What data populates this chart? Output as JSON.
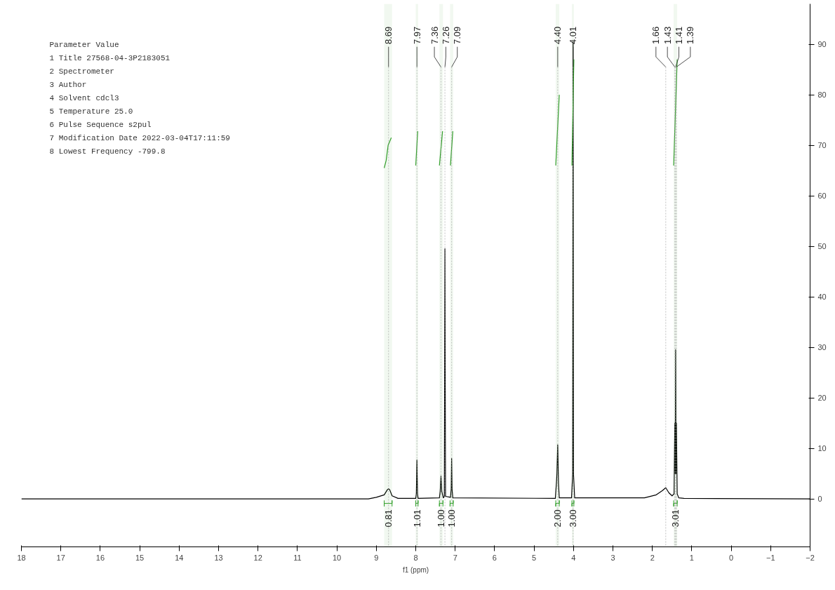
{
  "chart_data": {
    "type": "line",
    "xlabel": "f1 (ppm)",
    "xlim": [
      18,
      -2
    ],
    "ylim": [
      -9.5,
      98
    ],
    "xticks": [
      18,
      17,
      16,
      15,
      14,
      13,
      12,
      11,
      10,
      9,
      8,
      7,
      6,
      5,
      4,
      3,
      2,
      1,
      0,
      -1,
      -2
    ],
    "yticks": [
      0,
      10,
      20,
      30,
      40,
      50,
      60,
      70,
      80,
      90
    ],
    "grid": false,
    "series": [
      {
        "color": "#000000",
        "x": [
          18,
          9.2,
          9.0,
          8.8,
          8.72,
          8.69,
          8.66,
          8.6,
          8.45,
          8.0,
          7.985,
          7.97,
          7.955,
          7.94,
          7.4,
          7.38,
          7.36,
          7.34,
          7.3,
          7.275,
          7.26,
          7.245,
          7.12,
          7.1,
          7.09,
          7.08,
          7.06,
          4.46,
          4.43,
          4.42,
          4.4,
          4.38,
          4.36,
          4.05,
          4.02,
          4.01,
          4.0,
          3.97,
          2.2,
          1.9,
          1.75,
          1.66,
          1.58,
          1.5,
          1.45,
          1.43,
          1.42,
          1.41,
          1.4,
          1.39,
          1.37,
          1.33,
          1.2,
          -2
        ],
        "values": [
          0,
          0,
          0.3,
          0.8,
          1.8,
          2.0,
          1.8,
          0.6,
          0.1,
          0.1,
          1,
          7.7,
          1,
          0.1,
          0.2,
          1.5,
          4.5,
          1.5,
          0.2,
          0.5,
          49.5,
          0.5,
          0.3,
          2,
          8,
          2,
          0.2,
          0.1,
          3.5,
          5,
          10.7,
          3,
          0.2,
          0.2,
          5,
          90.5,
          5,
          0.2,
          0.2,
          0.8,
          1.6,
          2.2,
          1.2,
          0.6,
          1,
          15,
          5,
          29.5,
          5,
          15,
          1,
          0.2,
          0.1,
          0
        ]
      },
      {
        "color": "#33a02c",
        "x": [
          8.8,
          8.75,
          8.7,
          8.62,
          8.6,
          8.0,
          7.95,
          7.9,
          7.4,
          7.32,
          7.3,
          7.12,
          7.06,
          7.0,
          4.45,
          4.36,
          4.3,
          4.04,
          3.99,
          3.9,
          1.46,
          1.37
        ],
        "values": [
          65.5,
          67,
          70,
          71.5,
          null,
          66,
          72.8,
          null,
          66,
          72.8,
          null,
          66,
          72.8,
          null,
          66,
          80,
          null,
          66,
          87,
          null,
          66,
          87
        ]
      }
    ],
    "annotations": [
      "Parameter Value",
      "1 Title 27568-04-3P2183051",
      "2 Spectrometer",
      "3 Author",
      "4 Solvent cdcl3",
      "5 Temperature 25.0",
      "6 Pulse Sequence s2pul",
      "7 Modification Date 2022-03-04T17:11:59",
      "8 Lowest Frequency -799.8"
    ],
    "ref_lines": [
      {
        "axis": "x",
        "value": 8.69,
        "label": "8.69"
      },
      {
        "axis": "x",
        "value": 7.97,
        "label": "7.97"
      },
      {
        "axis": "x",
        "value": 7.36,
        "label": "7.36"
      },
      {
        "axis": "x",
        "value": 7.26,
        "label": "7.26"
      },
      {
        "axis": "x",
        "value": 7.09,
        "label": "7.09"
      },
      {
        "axis": "x",
        "value": 4.4,
        "label": "4.40"
      },
      {
        "axis": "x",
        "value": 4.01,
        "label": "4.01"
      },
      {
        "axis": "x",
        "value": 1.66,
        "label": "1.66"
      },
      {
        "axis": "x",
        "value": 1.43,
        "label": "1.43"
      },
      {
        "axis": "x",
        "value": 1.41,
        "label": "1.41"
      },
      {
        "axis": "x",
        "value": 1.39,
        "label": "1.39"
      }
    ],
    "bands": [
      {
        "axis": "x",
        "from": 8.8,
        "to": 8.6,
        "label": "0.81",
        "color": "#33a02c"
      },
      {
        "axis": "x",
        "from": 8.0,
        "to": 7.94,
        "label": "1.01",
        "color": "#33a02c"
      },
      {
        "axis": "x",
        "from": 7.4,
        "to": 7.31,
        "label": "1.00",
        "color": "#33a02c"
      },
      {
        "axis": "x",
        "from": 7.13,
        "to": 7.05,
        "label": "1.00",
        "color": "#33a02c"
      },
      {
        "axis": "x",
        "from": 4.45,
        "to": 4.36,
        "label": "2.00",
        "color": "#33a02c"
      },
      {
        "axis": "x",
        "from": 4.04,
        "to": 3.99,
        "label": "3.00",
        "color": "#33a02c"
      },
      {
        "axis": "x",
        "from": 1.46,
        "to": 1.37,
        "label": "3.01",
        "color": "#33a02c"
      }
    ]
  }
}
